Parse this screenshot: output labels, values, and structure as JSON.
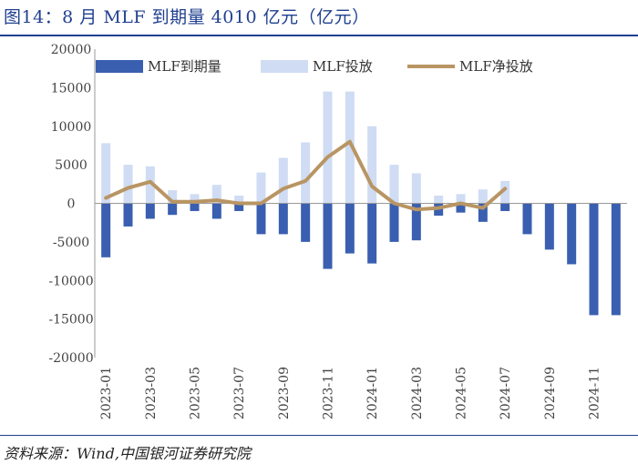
{
  "title": "图14：8 月 MLF 到期量 4010 亿元（亿元）",
  "source": "资料来源：Wind,中国银河证券研究院",
  "chart_data": {
    "type": "bar",
    "categories": [
      "2023-01",
      "2023-02",
      "2023-03",
      "2023-04",
      "2023-05",
      "2023-06",
      "2023-07",
      "2023-08",
      "2023-09",
      "2023-10",
      "2023-11",
      "2023-12",
      "2024-01",
      "2024-02",
      "2024-03",
      "2024-04",
      "2024-05",
      "2024-06",
      "2024-07",
      "2024-08",
      "2024-09",
      "2024-10",
      "2024-11",
      "2024-12"
    ],
    "tick_labels": [
      "2023-01",
      "2023-03",
      "2023-05",
      "2023-07",
      "2023-09",
      "2023-11",
      "2024-01",
      "2024-03",
      "2024-05",
      "2024-07",
      "2024-09",
      "2024-11"
    ],
    "series": [
      {
        "name": "MLF到期量",
        "type": "bar",
        "color": "#3a5fb0",
        "values": [
          -7000,
          -3000,
          -2000,
          -1500,
          -1000,
          -2000,
          -1000,
          -4000,
          -4000,
          -5000,
          -8500,
          -6500,
          -7800,
          -5000,
          -4800,
          -1600,
          -1200,
          -2400,
          -1000,
          -4000,
          -6000,
          -7900,
          -14500,
          -14500
        ]
      },
      {
        "name": "MLF投放",
        "type": "bar",
        "color": "#cfdcf3",
        "values": [
          7800,
          5000,
          4800,
          1700,
          1200,
          2400,
          1000,
          4000,
          5900,
          7900,
          14500,
          14500,
          10000,
          5000,
          3900,
          1000,
          1200,
          1800,
          2900,
          null,
          null,
          null,
          null,
          null
        ]
      },
      {
        "name": "MLF净投放",
        "type": "line",
        "color": "#b89563",
        "values": [
          700,
          2000,
          2800,
          200,
          200,
          400,
          0,
          0,
          1900,
          2900,
          6000,
          8000,
          2200,
          0,
          -800,
          -600,
          0,
          -600,
          1900,
          null,
          null,
          null,
          null,
          null
        ]
      }
    ],
    "ylim": [
      -20000,
      20000
    ],
    "yticks": [
      "20000",
      "15000",
      "10000",
      "5000",
      "0",
      "-5000",
      "-10000",
      "-15000",
      "-20000"
    ],
    "legend": "top"
  }
}
